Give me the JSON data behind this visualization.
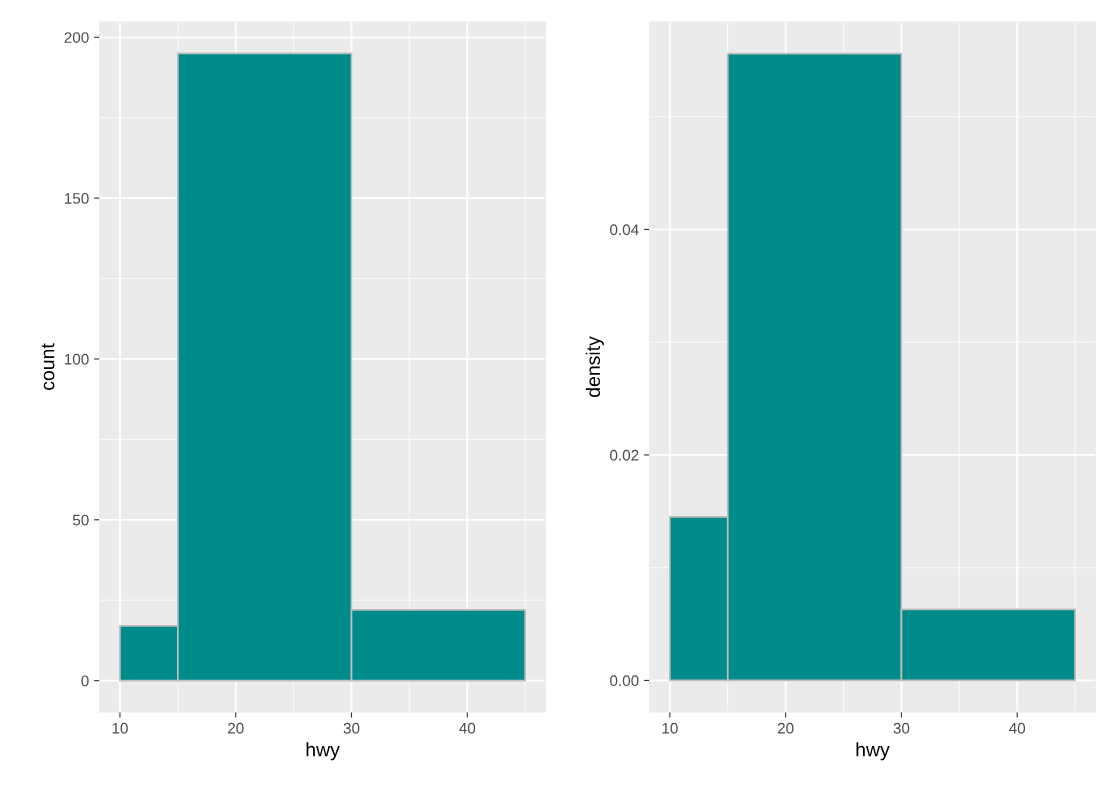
{
  "chart_data": [
    {
      "type": "histogram",
      "xlabel": "hwy",
      "ylabel": "count",
      "bins": [
        10,
        15,
        30,
        45
      ],
      "values": [
        17,
        195,
        22
      ],
      "color": "#008b8b",
      "xlim": [
        8.25,
        46.75
      ],
      "xticks": [
        10,
        20,
        30,
        40
      ],
      "ylim": [
        -9.75,
        204.75
      ],
      "yticks": [
        0,
        50,
        100,
        150,
        200
      ],
      "grid": true
    },
    {
      "type": "histogram",
      "xlabel": "hwy",
      "ylabel": "density",
      "bins": [
        10,
        15,
        30,
        45
      ],
      "values": [
        0.0145,
        0.0556,
        0.0063
      ],
      "color": "#008b8b",
      "xlim": [
        8.25,
        46.75
      ],
      "xticks": [
        10,
        20,
        30,
        40
      ],
      "ylim": [
        -0.0028,
        0.0584
      ],
      "yticks": [
        {
          "value": 0,
          "label": "0.00"
        },
        {
          "value": 0.02,
          "label": "0.02"
        },
        {
          "value": 0.04,
          "label": "0.04"
        }
      ],
      "grid": true
    }
  ]
}
